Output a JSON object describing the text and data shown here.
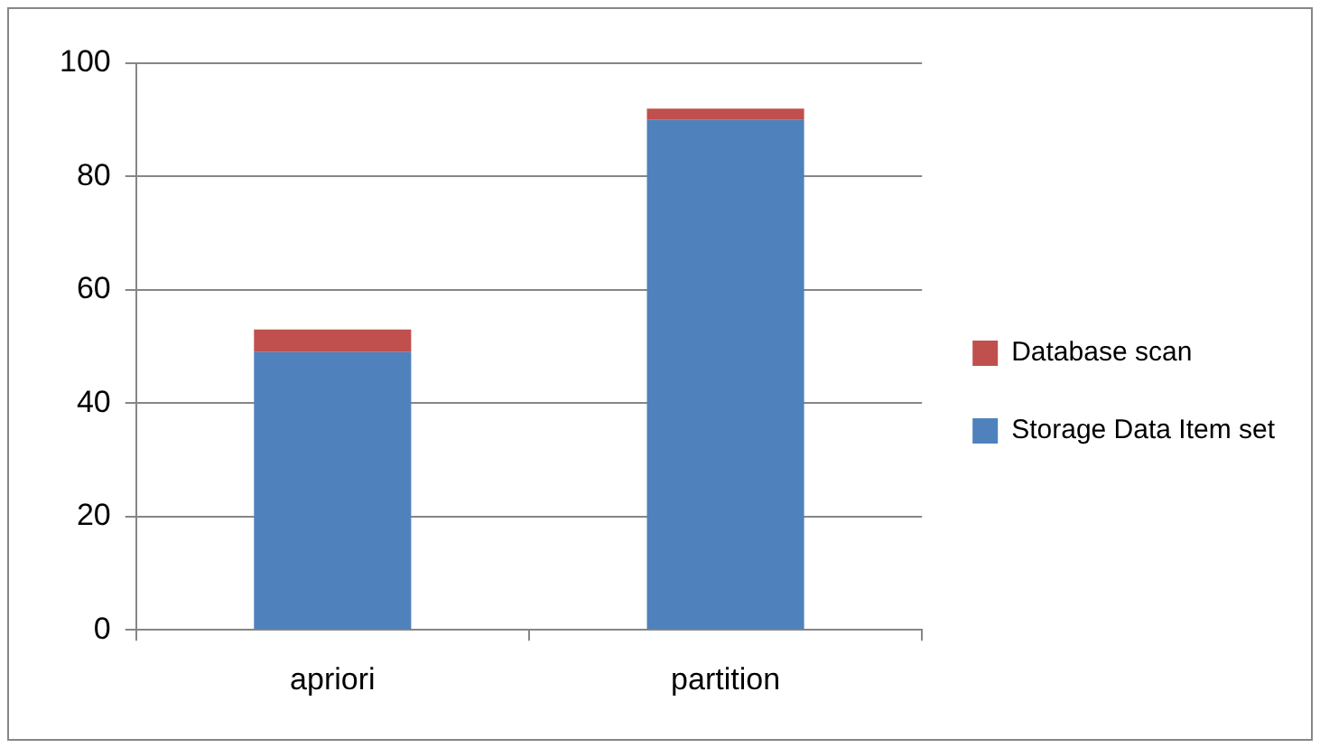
{
  "chart_data": {
    "type": "bar",
    "stacked": true,
    "categories": [
      "apriori",
      "partition"
    ],
    "series": [
      {
        "name": "Storage Data Item set",
        "color": "#4f81bd",
        "values": [
          49,
          90
        ]
      },
      {
        "name": "Database scan",
        "color": "#c0504d",
        "values": [
          4,
          2
        ]
      }
    ],
    "ylim": [
      0,
      100
    ],
    "yticks": [
      0,
      20,
      40,
      60,
      80,
      100
    ],
    "grid": "y",
    "legend": "right"
  }
}
